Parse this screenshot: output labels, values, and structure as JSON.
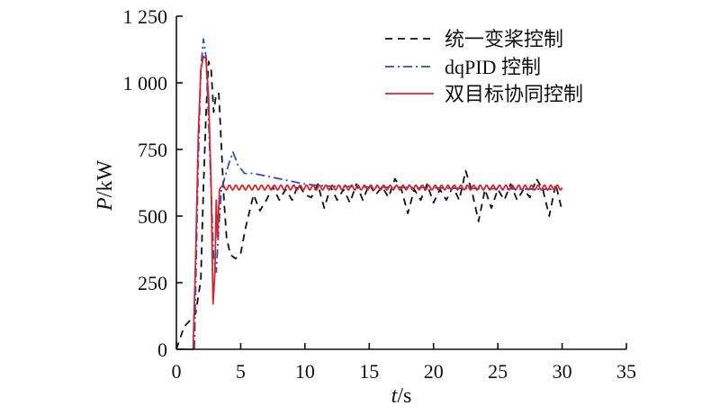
{
  "chart_data": {
    "type": "line",
    "xlabel": {
      "var": "t",
      "unit": "/s"
    },
    "ylabel": {
      "var": "P",
      "unit": "/kW"
    },
    "xlim": [
      0,
      35
    ],
    "ylim": [
      0,
      1250
    ],
    "x_ticks": [
      0,
      5,
      10,
      15,
      20,
      25,
      30,
      35
    ],
    "x_tick_labels": [
      "0",
      "5",
      "10",
      "15",
      "20",
      "25",
      "30",
      "35"
    ],
    "y_ticks": [
      0,
      250,
      500,
      750,
      1000,
      1250
    ],
    "y_tick_labels": [
      "0",
      "250",
      "500",
      "750",
      "1 000",
      "1 250"
    ],
    "grid": false,
    "legend_position": "top-right",
    "series": [
      {
        "name": "统一变桨控制",
        "color": "#111111",
        "dash": "dashed",
        "points": [
          [
            0,
            0
          ],
          [
            0.6,
            85
          ],
          [
            1.0,
            105
          ],
          [
            1.5,
            135
          ],
          [
            1.9,
            260
          ],
          [
            2.1,
            600
          ],
          [
            2.3,
            880
          ],
          [
            2.5,
            1080
          ],
          [
            2.7,
            1050
          ],
          [
            2.9,
            890
          ],
          [
            3.1,
            960
          ],
          [
            3.3,
            960
          ],
          [
            3.5,
            760
          ],
          [
            3.7,
            560
          ],
          [
            3.9,
            420
          ],
          [
            4.2,
            355
          ],
          [
            4.6,
            340
          ],
          [
            5.0,
            360
          ],
          [
            5.4,
            460
          ],
          [
            6.0,
            580
          ],
          [
            6.5,
            520
          ],
          [
            7.0,
            560
          ],
          [
            7.5,
            610
          ],
          [
            8.0,
            560
          ],
          [
            8.5,
            600
          ],
          [
            9.0,
            560
          ],
          [
            9.5,
            620
          ],
          [
            10.0,
            580
          ],
          [
            10.5,
            570
          ],
          [
            11.0,
            620
          ],
          [
            11.5,
            530
          ],
          [
            12.0,
            610
          ],
          [
            12.5,
            560
          ],
          [
            13.0,
            600
          ],
          [
            13.5,
            550
          ],
          [
            14.0,
            620
          ],
          [
            14.5,
            560
          ],
          [
            15.0,
            620
          ],
          [
            15.5,
            580
          ],
          [
            16.0,
            610
          ],
          [
            16.5,
            570
          ],
          [
            17.0,
            640
          ],
          [
            17.5,
            600
          ],
          [
            18.0,
            510
          ],
          [
            18.5,
            600
          ],
          [
            19.0,
            560
          ],
          [
            19.5,
            620
          ],
          [
            20.0,
            550
          ],
          [
            20.5,
            600
          ],
          [
            21.0,
            560
          ],
          [
            21.5,
            610
          ],
          [
            22.0,
            560
          ],
          [
            22.5,
            670
          ],
          [
            23.0,
            590
          ],
          [
            23.5,
            480
          ],
          [
            24.0,
            600
          ],
          [
            24.5,
            530
          ],
          [
            25.0,
            600
          ],
          [
            25.5,
            560
          ],
          [
            26.0,
            620
          ],
          [
            26.5,
            560
          ],
          [
            27.0,
            600
          ],
          [
            27.5,
            570
          ],
          [
            28.0,
            640
          ],
          [
            28.5,
            600
          ],
          [
            29.0,
            500
          ],
          [
            29.5,
            620
          ],
          [
            30.0,
            520
          ]
        ]
      },
      {
        "name": "dqPID 控制",
        "color": "#2a52be",
        "dash": "dashdot",
        "points": [
          [
            1.4,
            0
          ],
          [
            1.7,
            700
          ],
          [
            1.9,
            1050
          ],
          [
            2.1,
            1165
          ],
          [
            2.3,
            1100
          ],
          [
            2.5,
            870
          ],
          [
            2.7,
            600
          ],
          [
            2.9,
            340
          ],
          [
            3.1,
            290
          ],
          [
            3.3,
            460
          ],
          [
            3.5,
            600
          ],
          [
            3.8,
            650
          ],
          [
            4.1,
            700
          ],
          [
            4.4,
            740
          ],
          [
            4.8,
            690
          ],
          [
            5.3,
            660
          ],
          [
            6.0,
            660
          ],
          [
            7.0,
            650
          ],
          [
            8.0,
            640
          ],
          [
            9.0,
            630
          ],
          [
            10.0,
            620
          ],
          [
            11.0,
            615
          ],
          [
            12.0,
            612
          ],
          [
            14.0,
            610
          ],
          [
            16.0,
            608
          ],
          [
            18.0,
            607
          ],
          [
            20.0,
            606
          ],
          [
            22.0,
            604
          ],
          [
            24.0,
            603
          ],
          [
            26.0,
            602
          ],
          [
            28.0,
            601
          ],
          [
            30.0,
            600
          ]
        ]
      },
      {
        "name": "双目标协同控制",
        "color": "#d7262b",
        "dash": "solid",
        "points": [
          [
            0,
            0
          ],
          [
            1.3,
            0
          ],
          [
            1.5,
            350
          ],
          [
            1.7,
            800
          ],
          [
            1.9,
            1050
          ],
          [
            2.1,
            1100
          ],
          [
            2.3,
            1090
          ],
          [
            2.5,
            950
          ],
          [
            2.7,
            620
          ],
          [
            2.85,
            170
          ],
          [
            3.0,
            290
          ],
          [
            3.1,
            560
          ],
          [
            3.2,
            420
          ],
          [
            3.35,
            600
          ],
          [
            3.5,
            610
          ]
        ],
        "oscillation": {
          "from": 3.5,
          "to": 30,
          "mean": 607,
          "amplitude": 9,
          "period": 0.5
        }
      }
    ]
  }
}
